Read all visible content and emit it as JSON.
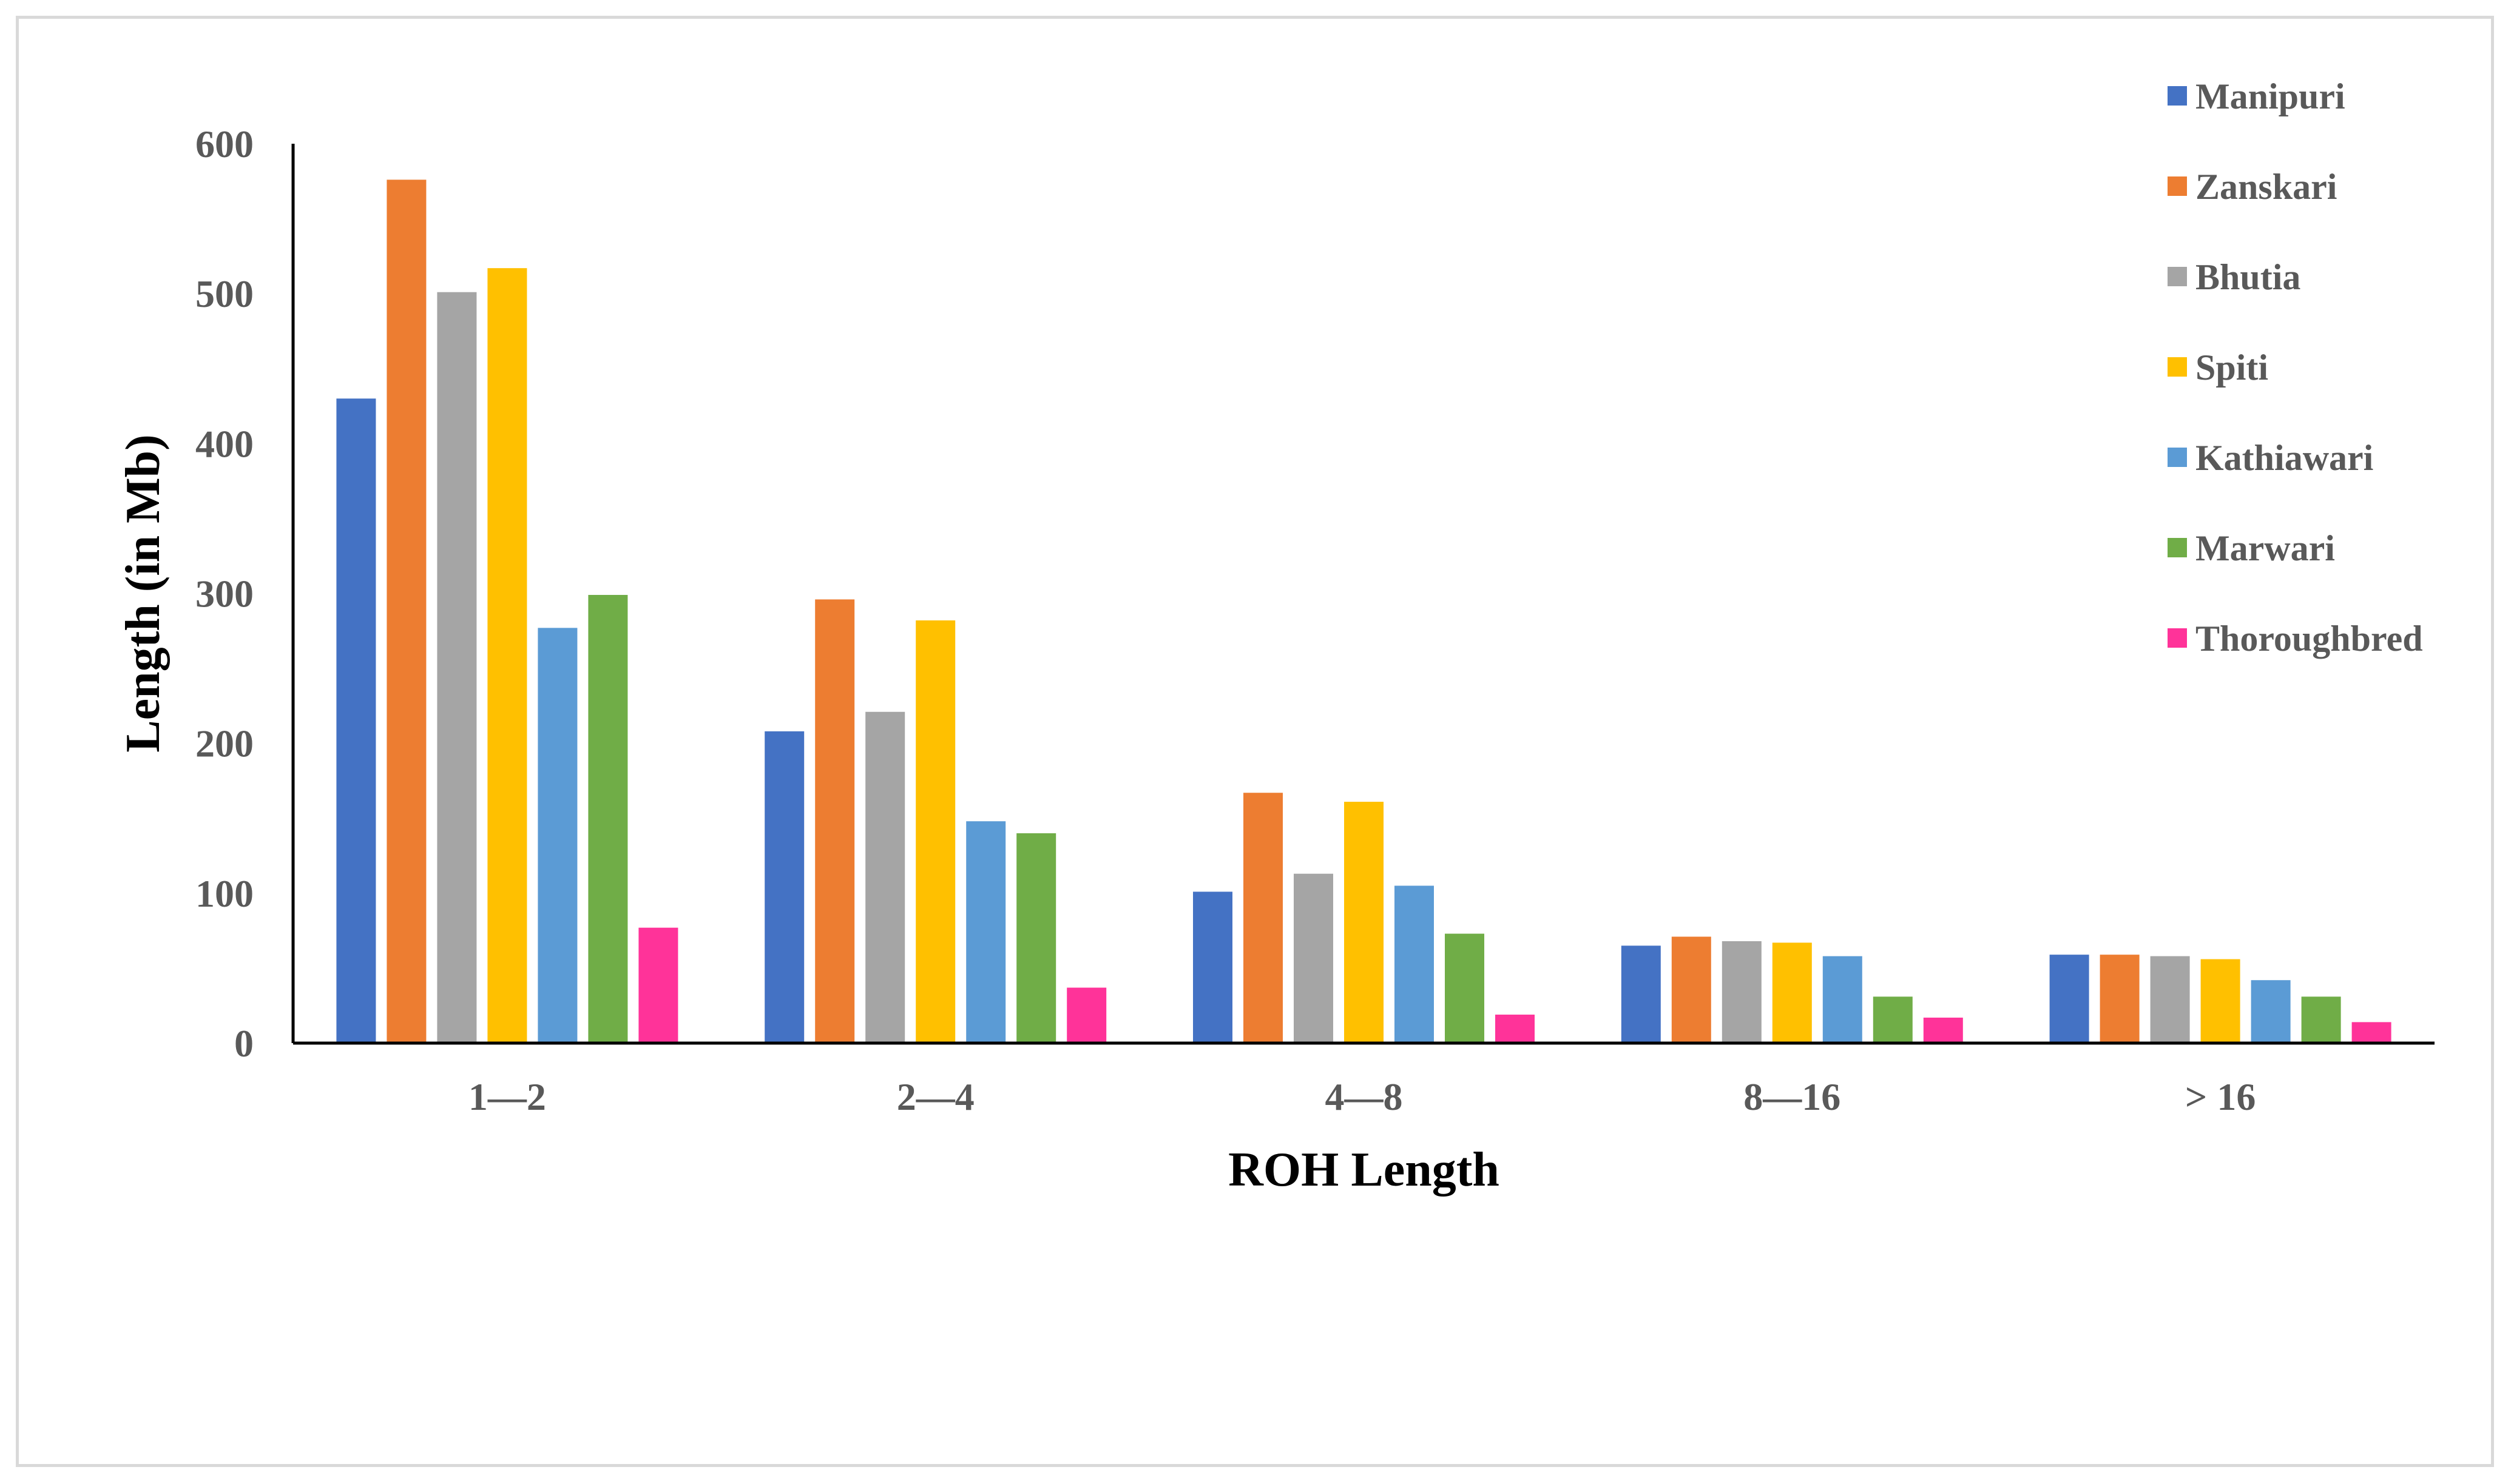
{
  "chart_data": {
    "type": "bar",
    "title": "",
    "xlabel": "ROH Length",
    "ylabel": "Length (in Mb)",
    "categories": [
      "1—2",
      "2—4",
      "4—8",
      "8—16",
      "> 16"
    ],
    "ylim": [
      0,
      600
    ],
    "yticks": [
      0,
      100,
      200,
      300,
      400,
      500,
      600
    ],
    "grid": false,
    "legend_position": "top-right",
    "series": [
      {
        "name": "Manipuri",
        "color": "#4472C4",
        "values": [
          430,
          208,
          101,
          65,
          59
        ]
      },
      {
        "name": "Zanskari",
        "color": "#ED7D31",
        "values": [
          576,
          296,
          167,
          71,
          59
        ]
      },
      {
        "name": "Bhutia",
        "color": "#A5A5A5",
        "values": [
          501,
          221,
          113,
          68,
          58
        ]
      },
      {
        "name": "Spiti",
        "color": "#FFC000",
        "values": [
          517,
          282,
          161,
          67,
          56
        ]
      },
      {
        "name": "Kathiawari",
        "color": "#5B9BD5",
        "values": [
          277,
          148,
          105,
          58,
          42
        ]
      },
      {
        "name": "Marwari",
        "color": "#70AD47",
        "values": [
          299,
          140,
          73,
          31,
          31
        ]
      },
      {
        "name": "Thoroughbred",
        "color": "#FF3399",
        "values": [
          77,
          37,
          19,
          17,
          14
        ]
      }
    ]
  }
}
